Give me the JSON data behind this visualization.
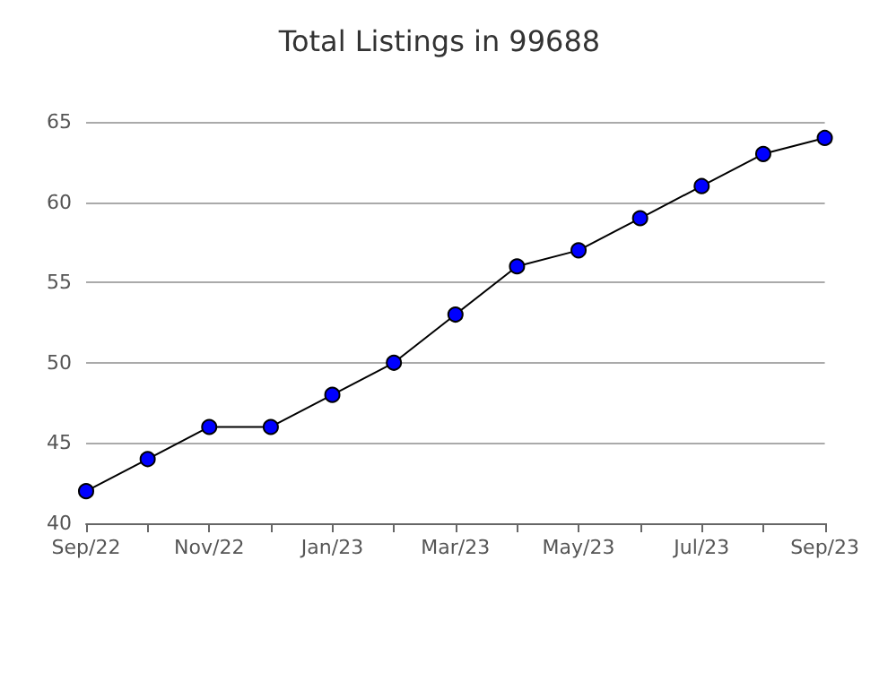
{
  "chart_data": {
    "type": "line",
    "title": "Total Listings in 99688",
    "categories": [
      "Sep/22",
      null,
      "Nov/22",
      null,
      "Jan/23",
      null,
      "Mar/23",
      null,
      "May/23",
      null,
      "Jul/23",
      null,
      "Sep/23"
    ],
    "series": [
      {
        "color": "#0000ff",
        "values": [
          42,
          44,
          46,
          46,
          48,
          50,
          53,
          56,
          57,
          59,
          61,
          63,
          64
        ]
      }
    ],
    "ylim": [
      40,
      65
    ],
    "yticks": [
      40,
      45,
      50,
      55,
      60,
      65
    ],
    "grid": "y",
    "marker": "circle",
    "line_style": "solid"
  }
}
